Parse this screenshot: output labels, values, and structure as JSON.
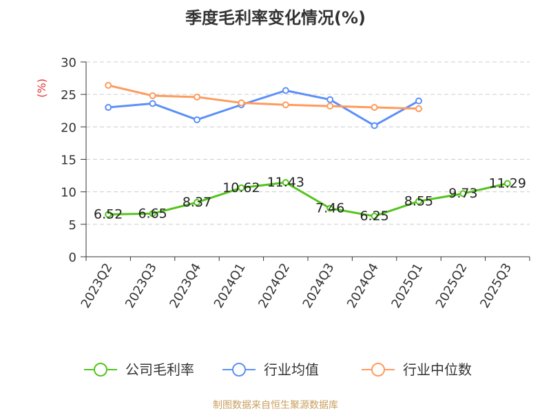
{
  "chart_data": {
    "type": "line",
    "title": "季度毛利率变化情况(%)",
    "ylabel": "(%)",
    "xlabel": "",
    "ylim": [
      0,
      30
    ],
    "yticks": [
      0,
      5,
      10,
      15,
      20,
      25,
      30
    ],
    "grid": true,
    "legend_position": "bottom",
    "categories": [
      "2023Q2",
      "2023Q3",
      "2023Q4",
      "2024Q1",
      "2024Q2",
      "2024Q3",
      "2024Q4",
      "2025Q1",
      "2025Q2",
      "2025Q3"
    ],
    "series": [
      {
        "name": "公司毛利率",
        "color": "#52c41a",
        "values": [
          6.52,
          6.65,
          8.37,
          10.62,
          11.43,
          7.46,
          6.25,
          8.55,
          9.73,
          11.29
        ],
        "labels": [
          "6.52",
          "6.65",
          "8.37",
          "10.62",
          "11.43",
          "7.46",
          "6.25",
          "8.55",
          "9.73",
          "11.29"
        ]
      },
      {
        "name": "行业均值",
        "color": "#5b8ff9",
        "values": [
          23.0,
          23.6,
          21.1,
          23.4,
          25.6,
          24.2,
          20.2,
          24.0,
          null,
          null
        ]
      },
      {
        "name": "行业中位数",
        "color": "#ff9a5c",
        "values": [
          26.4,
          24.8,
          24.6,
          23.7,
          23.4,
          23.2,
          23.0,
          22.8,
          null,
          null
        ]
      }
    ]
  },
  "footer": {
    "source": "制图数据来自恒生聚源数据库"
  }
}
